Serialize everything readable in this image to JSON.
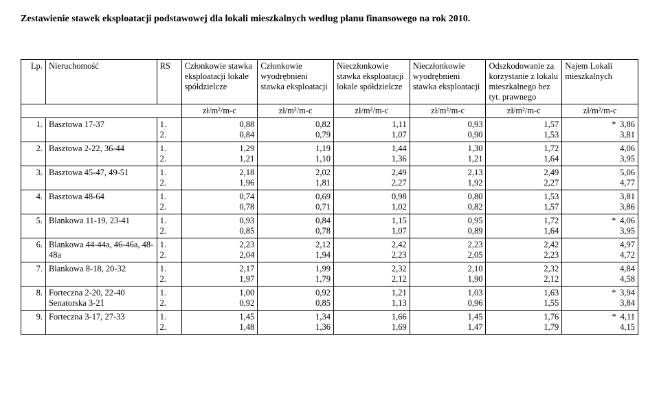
{
  "title": "Zestawienie stawek eksploatacji podstawowej dla lokali mieszkalnych według planu finansowego na rok 2010.",
  "headers": {
    "lp": "Lp.",
    "name": "Nieruchomość",
    "rs": "RS",
    "c1": "Członkowie stawka eksploatacji lokale spółdzielcze",
    "c2": "Członkowie wyodrębnieni stawka eksploatacji",
    "c3": "Nieczłonkowie stawka eksploatacji lokale spółdzielcze",
    "c4": "Nieczłonkowie wyodrębnieni stawka eksploatacji",
    "c5": "Odszkodowanie za korzystanie z lokalu mieszkalnego bez tyt. prawnego",
    "c6": "Najem Lokali mieszkalnych"
  },
  "unit": "zł/m²/m-c",
  "rows": [
    {
      "lp": "1.",
      "name": "Basztowa 17-37",
      "rs1": "1.",
      "rs2": "2.",
      "v": [
        [
          "0,88",
          "0,82",
          "1,11",
          "0,93",
          "1,57",
          "3,86"
        ],
        [
          "0,84",
          "0,79",
          "1,07",
          "0,90",
          "1,53",
          "3,81"
        ]
      ],
      "star": "*"
    },
    {
      "lp": "2.",
      "name": "Basztowa 2-22, 36-44",
      "rs1": "1.",
      "rs2": "2.",
      "v": [
        [
          "1,29",
          "1,19",
          "1,44",
          "1,30",
          "1,72",
          "4,06"
        ],
        [
          "1,21",
          "1,10",
          "1,36",
          "1,21",
          "1,64",
          "3,95"
        ]
      ],
      "star": ""
    },
    {
      "lp": "3.",
      "name": "Basztowa 45-47, 49-51",
      "rs1": "1.",
      "rs2": "2.",
      "v": [
        [
          "2,18",
          "2,02",
          "2,49",
          "2,13",
          "2,49",
          "5,06"
        ],
        [
          "1,96",
          "1,81",
          "2,27",
          "1,92",
          "2,27",
          "4,77"
        ]
      ],
      "star": ""
    },
    {
      "lp": "4.",
      "name": "Basztowa 48-64",
      "rs1": "1.",
      "rs2": "2.",
      "v": [
        [
          "0,74",
          "0,69",
          "0,98",
          "0,80",
          "1,53",
          "3,81"
        ],
        [
          "0,78",
          "0,71",
          "1,02",
          "0,82",
          "1,57",
          "3,86"
        ]
      ],
      "star": ""
    },
    {
      "lp": "5.",
      "name": "Blankowa 11-19, 23-41",
      "rs1": "1.",
      "rs2": "2.",
      "v": [
        [
          "0,93",
          "0,84",
          "1,15",
          "0,95",
          "1,72",
          "4,06"
        ],
        [
          "0,85",
          "0,78",
          "1,07",
          "0,89",
          "1,64",
          "3,95"
        ]
      ],
      "star": "*"
    },
    {
      "lp": "6.",
      "name": "Blankowa 44-44a, 46-46a, 48-48a",
      "rs1": "1.",
      "rs2": "2.",
      "v": [
        [
          "2,23",
          "2,12",
          "2,42",
          "2,23",
          "2,42",
          "4,97"
        ],
        [
          "2,04",
          "1,94",
          "2,23",
          "2,05",
          "2,23",
          "4,72"
        ]
      ],
      "star": ""
    },
    {
      "lp": "7.",
      "name": "Blankowa 8-18, 20-32",
      "rs1": "1.",
      "rs2": "2.",
      "v": [
        [
          "2,17",
          "1,99",
          "2,32",
          "2,10",
          "2,32",
          "4,84"
        ],
        [
          "1,97",
          "1,79",
          "2,12",
          "1,90",
          "2,12",
          "4,58"
        ]
      ],
      "star": ""
    },
    {
      "lp": "8.",
      "name": "Forteczna 2-20, 22-40 Senatorska 3-21",
      "rs1": "1.",
      "rs2": "2.",
      "v": [
        [
          "1,00",
          "0,92",
          "1,21",
          "1,03",
          "1,63",
          "3,94"
        ],
        [
          "0,92",
          "0,85",
          "1,13",
          "0,96",
          "1,55",
          "3,84"
        ]
      ],
      "star": "*"
    },
    {
      "lp": "9.",
      "name": "Forteczna 3-17, 27-33",
      "rs1": "1.",
      "rs2": "2.",
      "v": [
        [
          "1,45",
          "1,34",
          "1,66",
          "1,45",
          "1,76",
          "4,11"
        ],
        [
          "1,48",
          "1,36",
          "1,69",
          "1,47",
          "1,79",
          "4,15"
        ]
      ],
      "star": "*"
    }
  ]
}
